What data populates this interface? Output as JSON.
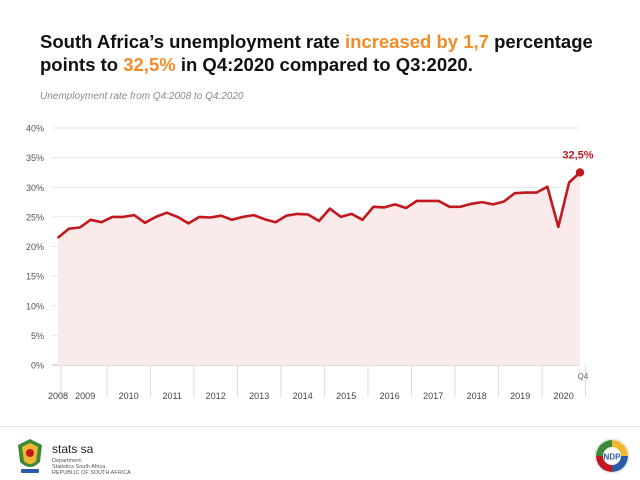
{
  "header": {
    "title_part1": "South Africa’s unemployment rate ",
    "title_highlight1": "increased by 1,7",
    "title_part2": " percentage points to ",
    "title_highlight2": "32,5%",
    "title_part3": " in Q4:2020 compared to Q3:2020.",
    "subtitle": "Unemployment rate from Q4:2008 to Q4:2020"
  },
  "colors": {
    "line": "#c0181e",
    "highlight": "#f28c28",
    "area": "#fbeaea",
    "grid": "#e6e6e6"
  },
  "chart_data": {
    "type": "area",
    "title": "South Africa’s unemployment rate",
    "ylabel": "",
    "xlabel": "",
    "ylim": [
      0,
      40
    ],
    "yticks": [
      "0%",
      "5%",
      "10%",
      "15%",
      "20%",
      "25%",
      "30%",
      "35%",
      "40%"
    ],
    "year_labels": [
      "2008",
      "2009",
      "2010",
      "2011",
      "2012",
      "2013",
      "2014",
      "2015",
      "2016",
      "2017",
      "2018",
      "2019",
      "2020"
    ],
    "last_quarter_label": "Q4",
    "annotation": "32,5%",
    "series": [
      {
        "name": "Unemployment rate",
        "x": [
          "Q4:2008",
          "Q1:2009",
          "Q2:2009",
          "Q3:2009",
          "Q4:2009",
          "Q1:2010",
          "Q2:2010",
          "Q3:2010",
          "Q4:2010",
          "Q1:2011",
          "Q2:2011",
          "Q3:2011",
          "Q4:2011",
          "Q1:2012",
          "Q2:2012",
          "Q3:2012",
          "Q4:2012",
          "Q1:2013",
          "Q2:2013",
          "Q3:2013",
          "Q4:2013",
          "Q1:2014",
          "Q2:2014",
          "Q3:2014",
          "Q4:2014",
          "Q1:2015",
          "Q2:2015",
          "Q3:2015",
          "Q4:2015",
          "Q1:2016",
          "Q2:2016",
          "Q3:2016",
          "Q4:2016",
          "Q1:2017",
          "Q2:2017",
          "Q3:2017",
          "Q4:2017",
          "Q1:2018",
          "Q2:2018",
          "Q3:2018",
          "Q4:2018",
          "Q1:2019",
          "Q2:2019",
          "Q3:2019",
          "Q4:2019",
          "Q1:2020",
          "Q2:2020",
          "Q3:2020",
          "Q4:2020"
        ],
        "values": [
          21.5,
          23.0,
          23.2,
          24.5,
          24.1,
          25.0,
          25.0,
          25.3,
          24.0,
          25.0,
          25.7,
          25.0,
          23.9,
          25.0,
          24.9,
          25.2,
          24.5,
          25.0,
          25.3,
          24.6,
          24.1,
          25.2,
          25.5,
          25.4,
          24.3,
          26.4,
          25.0,
          25.5,
          24.5,
          26.7,
          26.6,
          27.1,
          26.5,
          27.7,
          27.7,
          27.7,
          26.7,
          26.7,
          27.2,
          27.5,
          27.1,
          27.6,
          29.0,
          29.1,
          29.1,
          30.1,
          23.3,
          30.8,
          32.5
        ]
      }
    ]
  },
  "footer": {
    "brand": "stats sa",
    "brand_sub1": "Department:",
    "brand_sub2": "Statistics South Africa",
    "brand_sub3": "REPUBLIC OF SOUTH AFRICA",
    "right_logo": "NDP"
  }
}
